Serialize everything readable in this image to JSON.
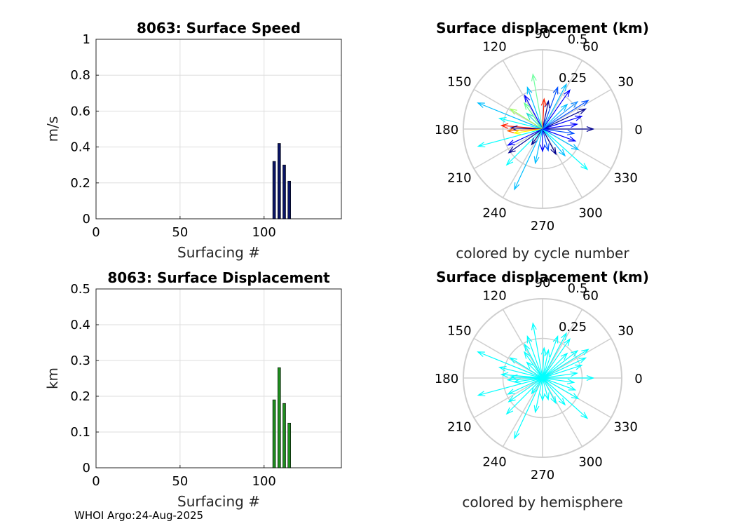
{
  "footer": {
    "credit": "WHOI Argo:24-Aug-2025"
  },
  "chart_data": [
    {
      "type": "bar",
      "id": "speed",
      "title": "8063: Surface Speed",
      "xlabel": "Surfacing #",
      "ylabel": "m/s",
      "xlim": [
        0,
        146
      ],
      "ylim": [
        0,
        1
      ],
      "xticks": [
        0,
        50,
        100
      ],
      "yticks": [
        0,
        0.2,
        0.4,
        0.6,
        0.8,
        1
      ],
      "ytick_labels": [
        "0",
        "0.2",
        "0.4",
        "0.6",
        "0.8",
        "1"
      ],
      "bar_color": "#0a1464",
      "x": [
        106,
        109,
        112,
        115
      ],
      "values": [
        0.32,
        0.42,
        0.3,
        0.21
      ]
    },
    {
      "type": "bar",
      "id": "displacement",
      "title": "8063: Surface Displacement",
      "xlabel": "Surfacing #",
      "ylabel": "km",
      "xlim": [
        0,
        146
      ],
      "ylim": [
        0,
        0.5
      ],
      "xticks": [
        0,
        50,
        100
      ],
      "yticks": [
        0,
        0.1,
        0.2,
        0.3,
        0.4,
        0.5
      ],
      "ytick_labels": [
        "0",
        "0.1",
        "0.2",
        "0.3",
        "0.4",
        "0.5"
      ],
      "bar_color": "#1f8c1f",
      "x": [
        106,
        109,
        112,
        115
      ],
      "values": [
        0.19,
        0.28,
        0.18,
        0.125
      ]
    },
    {
      "type": "polar",
      "id": "compass-cycle",
      "title": "Surface displacement (km)",
      "caption": "colored by cycle number",
      "rmax": 0.5,
      "rticks": [
        0.25,
        0.5
      ],
      "rtick_labels": [
        "0.25",
        "0.5"
      ],
      "angle_ticks": [
        0,
        30,
        60,
        90,
        120,
        150,
        180,
        210,
        240,
        270,
        300,
        330
      ],
      "angle_labels": [
        "0",
        "30",
        "60",
        "90",
        "120",
        "150",
        "180",
        "210",
        "240",
        "270",
        "300",
        "330"
      ],
      "arrows": [
        {
          "angle": 0,
          "r": 0.32,
          "color": "#00008f"
        },
        {
          "angle": 8,
          "r": 0.22,
          "color": "#0000ff"
        },
        {
          "angle": 352,
          "r": 0.2,
          "color": "#0050ff"
        },
        {
          "angle": 18,
          "r": 0.26,
          "color": "#0000ff"
        },
        {
          "angle": 25,
          "r": 0.3,
          "color": "#00008f"
        },
        {
          "angle": 32,
          "r": 0.34,
          "color": "#0050ff"
        },
        {
          "angle": 38,
          "r": 0.28,
          "color": "#1e90ff"
        },
        {
          "angle": 45,
          "r": 0.22,
          "color": "#00bfff"
        },
        {
          "angle": 55,
          "r": 0.3,
          "color": "#0000ff"
        },
        {
          "angle": 62,
          "r": 0.32,
          "color": "#00bfff"
        },
        {
          "angle": 70,
          "r": 0.28,
          "color": "#0050ff"
        },
        {
          "angle": 78,
          "r": 0.18,
          "color": "#00008f"
        },
        {
          "angle": 87,
          "r": 0.19,
          "color": "#ff2000"
        },
        {
          "angle": 100,
          "r": 0.35,
          "color": "#70ffa0"
        },
        {
          "angle": 110,
          "r": 0.28,
          "color": "#00bfff"
        },
        {
          "angle": 118,
          "r": 0.24,
          "color": "#0000ff"
        },
        {
          "angle": 125,
          "r": 0.2,
          "color": "#60ff90"
        },
        {
          "angle": 135,
          "r": 0.14,
          "color": "#20e0d0"
        },
        {
          "angle": 148,
          "r": 0.24,
          "color": "#a0ff60"
        },
        {
          "angle": 158,
          "r": 0.44,
          "color": "#00bfff"
        },
        {
          "angle": 166,
          "r": 0.28,
          "color": "#00ffff"
        },
        {
          "angle": 175,
          "r": 0.26,
          "color": "#ff2000"
        },
        {
          "angle": 178,
          "r": 0.2,
          "color": "#00008f"
        },
        {
          "angle": 183,
          "r": 0.22,
          "color": "#ff6000"
        },
        {
          "angle": 188,
          "r": 0.18,
          "color": "#ffff00"
        },
        {
          "angle": 195,
          "r": 0.42,
          "color": "#00ffff"
        },
        {
          "angle": 205,
          "r": 0.24,
          "color": "#0000ff"
        },
        {
          "angle": 215,
          "r": 0.26,
          "color": "#00008f"
        },
        {
          "angle": 225,
          "r": 0.32,
          "color": "#00ffff"
        },
        {
          "angle": 235,
          "r": 0.12,
          "color": "#00008f"
        },
        {
          "angle": 245,
          "r": 0.42,
          "color": "#00bfff"
        },
        {
          "angle": 258,
          "r": 0.22,
          "color": "#00bfff"
        },
        {
          "angle": 270,
          "r": 0.14,
          "color": "#0000ff"
        },
        {
          "angle": 285,
          "r": 0.14,
          "color": "#0050ff"
        },
        {
          "angle": 298,
          "r": 0.18,
          "color": "#00008f"
        },
        {
          "angle": 310,
          "r": 0.22,
          "color": "#00bfff"
        },
        {
          "angle": 318,
          "r": 0.38,
          "color": "#00ffff"
        },
        {
          "angle": 330,
          "r": 0.26,
          "color": "#00bfff"
        },
        {
          "angle": 340,
          "r": 0.22,
          "color": "#0000ff"
        }
      ]
    },
    {
      "type": "polar",
      "id": "compass-hemisphere",
      "title": "Surface displacement (km)",
      "caption": "colored by hemisphere",
      "rmax": 0.5,
      "rticks": [
        0.25,
        0.5
      ],
      "rtick_labels": [
        "0.25",
        "0.5"
      ],
      "angle_ticks": [
        0,
        30,
        60,
        90,
        120,
        150,
        180,
        210,
        240,
        270,
        300,
        330
      ],
      "angle_labels": [
        "0",
        "30",
        "60",
        "90",
        "120",
        "150",
        "180",
        "210",
        "240",
        "270",
        "300",
        "330"
      ],
      "arrow_color": "#00ffff",
      "arrows": [
        {
          "angle": 0,
          "r": 0.32
        },
        {
          "angle": 8,
          "r": 0.22
        },
        {
          "angle": 352,
          "r": 0.2
        },
        {
          "angle": 18,
          "r": 0.26
        },
        {
          "angle": 25,
          "r": 0.3
        },
        {
          "angle": 32,
          "r": 0.34
        },
        {
          "angle": 38,
          "r": 0.28
        },
        {
          "angle": 45,
          "r": 0.22
        },
        {
          "angle": 55,
          "r": 0.3
        },
        {
          "angle": 62,
          "r": 0.32
        },
        {
          "angle": 70,
          "r": 0.28
        },
        {
          "angle": 78,
          "r": 0.18
        },
        {
          "angle": 87,
          "r": 0.19
        },
        {
          "angle": 100,
          "r": 0.35
        },
        {
          "angle": 110,
          "r": 0.28
        },
        {
          "angle": 118,
          "r": 0.24
        },
        {
          "angle": 125,
          "r": 0.2
        },
        {
          "angle": 135,
          "r": 0.14
        },
        {
          "angle": 148,
          "r": 0.24
        },
        {
          "angle": 158,
          "r": 0.44
        },
        {
          "angle": 166,
          "r": 0.28
        },
        {
          "angle": 175,
          "r": 0.26
        },
        {
          "angle": 178,
          "r": 0.2
        },
        {
          "angle": 183,
          "r": 0.22
        },
        {
          "angle": 188,
          "r": 0.18
        },
        {
          "angle": 195,
          "r": 0.42
        },
        {
          "angle": 205,
          "r": 0.24
        },
        {
          "angle": 215,
          "r": 0.26
        },
        {
          "angle": 225,
          "r": 0.32
        },
        {
          "angle": 235,
          "r": 0.12
        },
        {
          "angle": 245,
          "r": 0.42
        },
        {
          "angle": 258,
          "r": 0.22
        },
        {
          "angle": 270,
          "r": 0.14
        },
        {
          "angle": 285,
          "r": 0.14
        },
        {
          "angle": 298,
          "r": 0.18
        },
        {
          "angle": 310,
          "r": 0.22
        },
        {
          "angle": 318,
          "r": 0.38
        },
        {
          "angle": 330,
          "r": 0.26
        },
        {
          "angle": 340,
          "r": 0.22
        }
      ]
    }
  ]
}
